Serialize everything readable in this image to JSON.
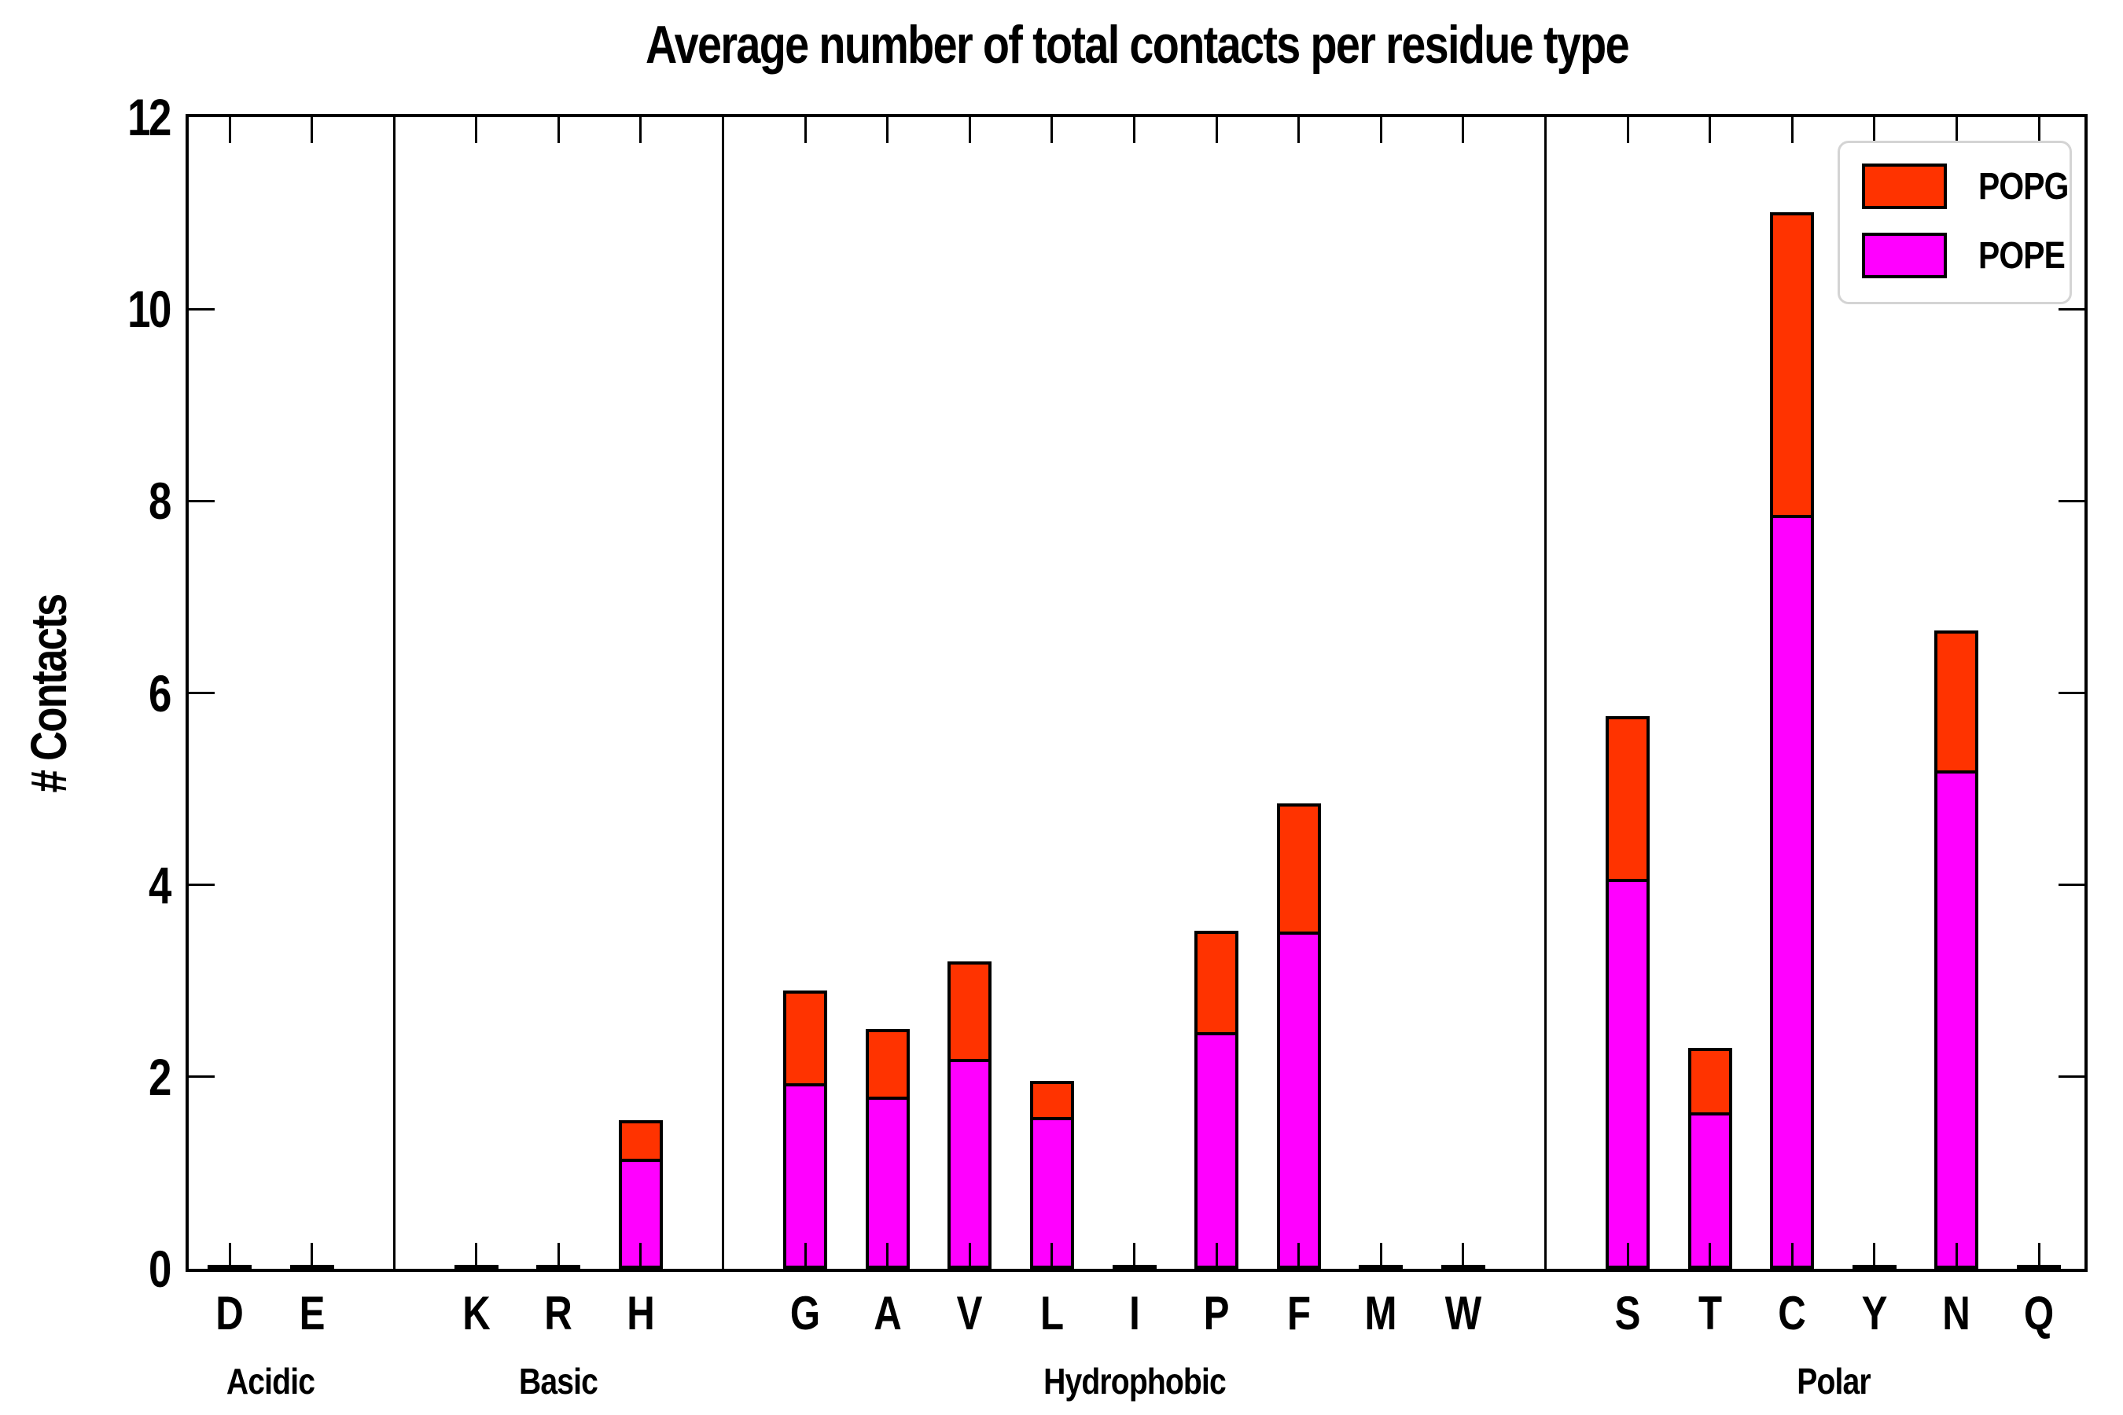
{
  "title": "Average number of total contacts per residue type",
  "ylabel": "# Contacts",
  "colors": {
    "popg": "#ff3300",
    "pope": "#ff00ff",
    "axis": "#000000",
    "legend_border": "#d4d4d4",
    "background": "#ffffff"
  },
  "legend": {
    "position": "upper right",
    "entries": [
      {
        "label": "POPG",
        "color": "#ff3300"
      },
      {
        "label": "POPE",
        "color": "#ff00ff"
      }
    ]
  },
  "chart_data": {
    "type": "bar",
    "stacked": true,
    "title": "Average number of total contacts per residue type",
    "xlabel": "",
    "ylabel": "# Contacts",
    "ylim": [
      0,
      12
    ],
    "yticks": [
      0,
      2,
      4,
      6,
      8,
      10,
      12
    ],
    "grid": false,
    "legend_position": "upper right",
    "categories": [
      "D",
      "E",
      "K",
      "R",
      "H",
      "G",
      "A",
      "V",
      "L",
      "I",
      "P",
      "F",
      "M",
      "W",
      "S",
      "T",
      "C",
      "Y",
      "N",
      "Q"
    ],
    "groups": [
      {
        "label": "Acidic",
        "residues": [
          "D",
          "E"
        ]
      },
      {
        "label": "Basic",
        "residues": [
          "K",
          "R",
          "H"
        ]
      },
      {
        "label": "Hydrophobic",
        "residues": [
          "G",
          "A",
          "V",
          "L",
          "I",
          "P",
          "F",
          "M",
          "W"
        ]
      },
      {
        "label": "Polar",
        "residues": [
          "S",
          "T",
          "C",
          "Y",
          "N",
          "Q"
        ]
      }
    ],
    "series": [
      {
        "name": "POPE",
        "color": "#ff00ff",
        "values": [
          0.02,
          0.02,
          0.02,
          0.02,
          1.13,
          1.92,
          1.78,
          2.17,
          1.57,
          0.02,
          2.45,
          3.5,
          0.03,
          0.03,
          4.05,
          1.61,
          7.84,
          0.02,
          5.18,
          0.02
        ]
      },
      {
        "name": "POPG",
        "color": "#ff3300",
        "values": [
          0.01,
          0.01,
          0.01,
          0.01,
          0.42,
          0.98,
          0.72,
          1.03,
          0.39,
          0.01,
          1.07,
          1.35,
          0.01,
          0.01,
          1.71,
          0.69,
          3.17,
          0.01,
          1.47,
          0.01
        ]
      }
    ],
    "totals": [
      0.03,
      0.03,
      0.03,
      0.03,
      1.55,
      2.9,
      2.5,
      3.2,
      1.96,
      0.03,
      3.52,
      4.85,
      0.04,
      0.04,
      5.76,
      2.3,
      11.01,
      0.03,
      6.65,
      0.03
    ]
  }
}
